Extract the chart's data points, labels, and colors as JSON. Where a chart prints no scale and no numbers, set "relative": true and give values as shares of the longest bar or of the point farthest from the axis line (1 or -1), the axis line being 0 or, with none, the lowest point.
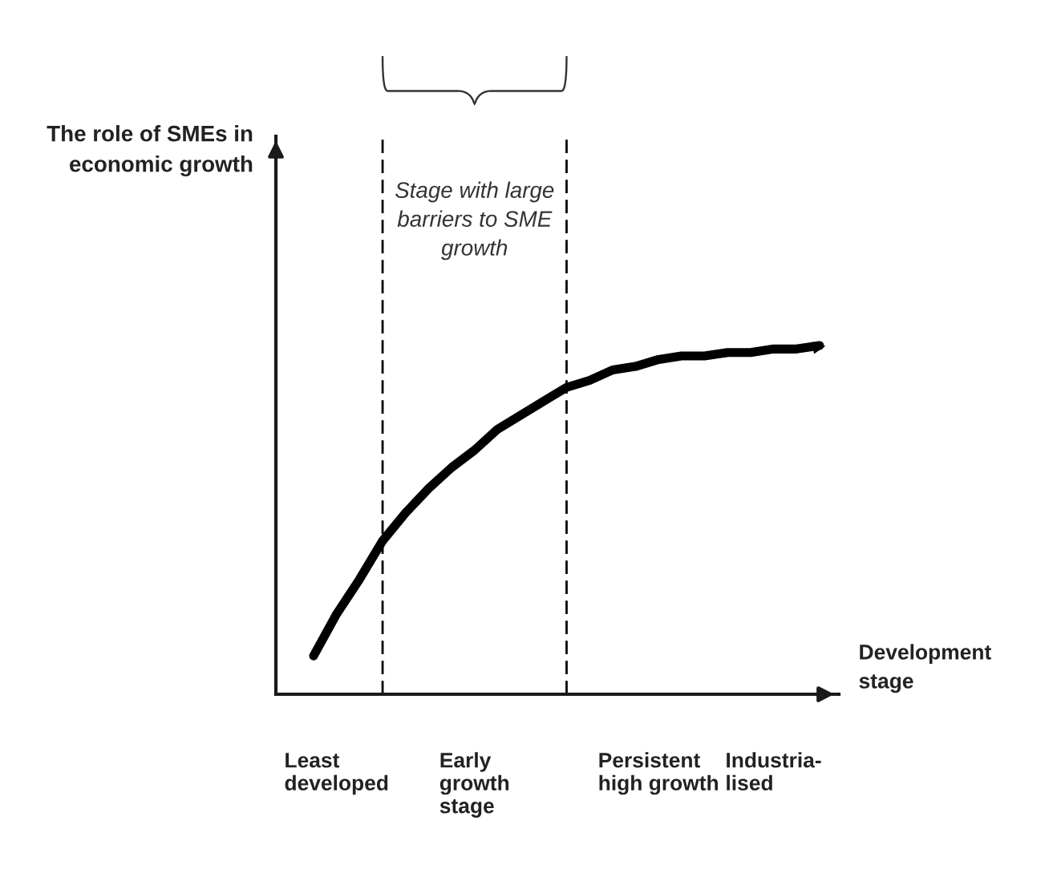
{
  "chart_data": {
    "type": "line",
    "relative": true,
    "xlabel": "Development\nstage",
    "categories": [
      null,
      null,
      "Least\ndeveloped",
      null,
      null,
      null,
      null,
      null,
      "Early\ngrowth\nstage",
      null,
      null,
      null,
      null,
      null,
      null,
      null,
      "Persistent\nhigh growth",
      null,
      null,
      null,
      null,
      "Industria-\nlised",
      null,
      null
    ],
    "values": [
      null,
      0.11,
      0.23,
      0.33,
      0.44,
      0.52,
      0.59,
      0.65,
      0.7,
      0.76,
      0.8,
      0.84,
      0.88,
      0.9,
      0.93,
      0.94,
      0.96,
      0.97,
      0.97,
      0.98,
      0.98,
      0.99,
      0.99,
      1.0
    ],
    "color": "#000000",
    "marker": "none",
    "line_style": "solid",
    "annotations": [
      "The role of SMEs in\neconomic growth",
      "Stage with large\nbarriers to SME\ngrowth"
    ]
  }
}
